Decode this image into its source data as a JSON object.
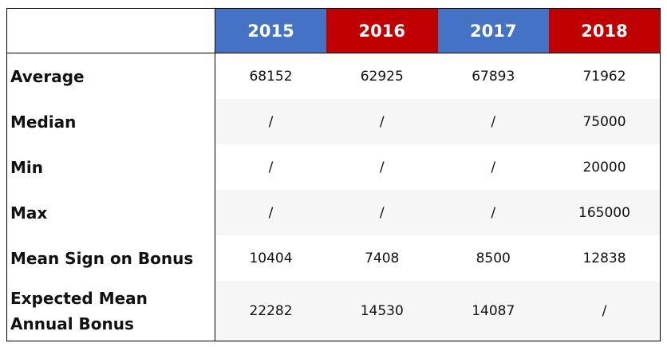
{
  "table": {
    "columns": [
      {
        "label": "2015",
        "color": "#4472c4"
      },
      {
        "label": "2016",
        "color": "#c00000"
      },
      {
        "label": "2017",
        "color": "#4472c4"
      },
      {
        "label": "2018",
        "color": "#c00000"
      }
    ],
    "rows": [
      {
        "label": "Average",
        "cells": [
          68152,
          62925,
          67893,
          71962
        ]
      },
      {
        "label": "Median",
        "cells": [
          "/",
          "/",
          "/",
          75000
        ]
      },
      {
        "label": "Min",
        "cells": [
          "/",
          "/",
          "/",
          20000
        ]
      },
      {
        "label": "Max",
        "cells": [
          "/",
          "/",
          "/",
          165000
        ]
      },
      {
        "label": "Mean Sign on Bonus",
        "cells": [
          10404,
          7408,
          8500,
          12838
        ]
      },
      {
        "label": "Expected Mean Annual Bonus",
        "cells": [
          22282,
          14530,
          14087,
          "/"
        ]
      }
    ]
  }
}
